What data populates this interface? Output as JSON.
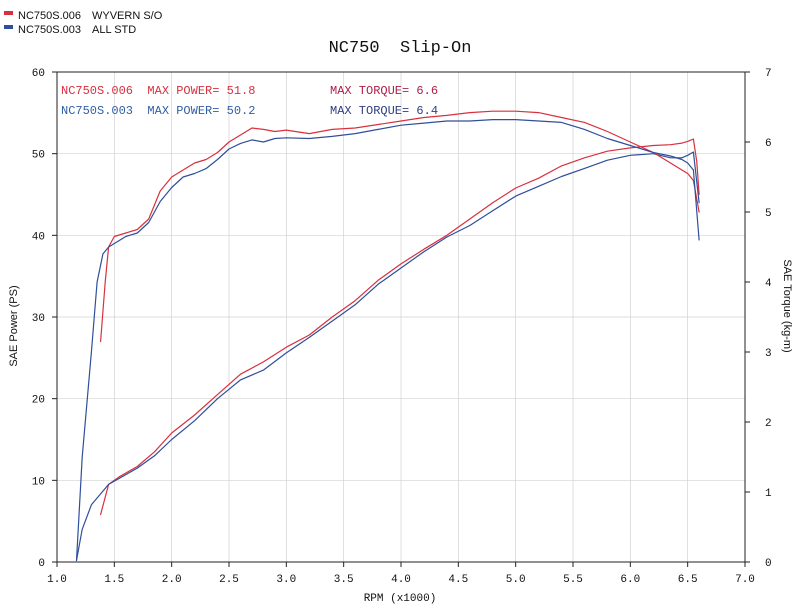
{
  "chart_data": {
    "type": "line",
    "title": "NC750  Slip-On",
    "xlabel": "RPM (x1000)",
    "ylabel": "SAE Power (PS)",
    "y2label": "SAE Torque (kg-m)",
    "xlim": [
      1.0,
      7.0
    ],
    "ylim": [
      0,
      60
    ],
    "y2lim": [
      0,
      7
    ],
    "xticks": [
      "1.0",
      "1.5",
      "2.0",
      "2.5",
      "3.0",
      "3.5",
      "4.0",
      "4.5",
      "5.0",
      "5.5",
      "6.0",
      "6.5",
      "7.0"
    ],
    "yticks": [
      "0",
      "10",
      "20",
      "30",
      "40",
      "50",
      "60"
    ],
    "y2ticks": [
      "0",
      "1",
      "2",
      "3",
      "4",
      "5",
      "6",
      "7"
    ],
    "grid": true,
    "legend": [
      {
        "code": "NC750S.006",
        "name": "WYVERN S/O",
        "color": "#d8303f"
      },
      {
        "code": "NC750S.003",
        "name": "ALL STD",
        "color": "#2f4f9a"
      }
    ],
    "annotations": [
      {
        "text": "NC750S.006  MAX POWER= 51.8",
        "color": "#d8303f"
      },
      {
        "text": "MAX TORQUE= 6.6",
        "color": "#b01e47"
      },
      {
        "text": "NC750S.003  MAX POWER= 50.2",
        "color": "#2f5fa8"
      },
      {
        "text": "MAX TORQUE= 6.4",
        "color": "#2f3f80"
      }
    ],
    "series": [
      {
        "name": "WYVERN S/O",
        "measure": "power",
        "axis": "left",
        "color": "#d8303f",
        "x": [
          1.38,
          1.45,
          1.55,
          1.7,
          1.85,
          2.0,
          2.2,
          2.4,
          2.6,
          2.8,
          3.0,
          3.2,
          3.4,
          3.6,
          3.8,
          4.0,
          4.2,
          4.4,
          4.6,
          4.8,
          5.0,
          5.2,
          5.4,
          5.6,
          5.8,
          6.0,
          6.2,
          6.35,
          6.45,
          6.5,
          6.55,
          6.58,
          6.6
        ],
        "y": [
          5.8,
          9.5,
          10.5,
          11.7,
          13.5,
          15.8,
          18.0,
          20.5,
          23.0,
          24.5,
          26.3,
          27.8,
          30.0,
          32.0,
          34.5,
          36.5,
          38.3,
          40.0,
          42.0,
          44.0,
          45.8,
          47.0,
          48.5,
          49.5,
          50.3,
          50.7,
          51.0,
          51.1,
          51.3,
          51.5,
          51.8,
          49.0,
          45.0
        ]
      },
      {
        "name": "ALL STD",
        "measure": "power",
        "axis": "left",
        "color": "#2f4f9a",
        "x": [
          1.17,
          1.22,
          1.3,
          1.45,
          1.55,
          1.7,
          1.85,
          2.0,
          2.2,
          2.4,
          2.6,
          2.8,
          3.0,
          3.2,
          3.4,
          3.6,
          3.8,
          4.0,
          4.2,
          4.4,
          4.6,
          4.8,
          5.0,
          5.2,
          5.4,
          5.6,
          5.8,
          6.0,
          6.2,
          6.35,
          6.45,
          6.5,
          6.55,
          6.6
        ],
        "y": [
          0.2,
          4.0,
          7.0,
          9.5,
          10.3,
          11.5,
          13.0,
          15.0,
          17.3,
          20.0,
          22.3,
          23.5,
          25.6,
          27.5,
          29.5,
          31.5,
          34.0,
          36.0,
          38.0,
          39.8,
          41.2,
          43.0,
          44.8,
          46.0,
          47.2,
          48.2,
          49.2,
          49.8,
          50.0,
          49.5,
          49.5,
          49.8,
          50.2,
          44.0
        ]
      },
      {
        "name": "WYVERN S/O",
        "measure": "torque",
        "axis": "right",
        "color": "#d8303f",
        "x": [
          1.38,
          1.42,
          1.45,
          1.5,
          1.6,
          1.7,
          1.8,
          1.9,
          2.0,
          2.1,
          2.2,
          2.3,
          2.4,
          2.5,
          2.6,
          2.7,
          2.8,
          2.9,
          3.0,
          3.2,
          3.4,
          3.6,
          3.8,
          4.0,
          4.2,
          4.4,
          4.6,
          4.8,
          5.0,
          5.2,
          5.4,
          5.6,
          5.8,
          6.0,
          6.2,
          6.35,
          6.45,
          6.5,
          6.55,
          6.6
        ],
        "y": [
          3.15,
          4.0,
          4.5,
          4.65,
          4.7,
          4.75,
          4.9,
          5.3,
          5.5,
          5.6,
          5.7,
          5.75,
          5.85,
          6.0,
          6.1,
          6.2,
          6.18,
          6.15,
          6.17,
          6.12,
          6.18,
          6.2,
          6.25,
          6.3,
          6.35,
          6.38,
          6.42,
          6.44,
          6.44,
          6.42,
          6.35,
          6.28,
          6.15,
          6.0,
          5.85,
          5.7,
          5.6,
          5.55,
          5.45,
          5.0
        ]
      },
      {
        "name": "ALL STD",
        "measure": "torque",
        "axis": "right",
        "color": "#2f4f9a",
        "x": [
          1.17,
          1.22,
          1.3,
          1.35,
          1.4,
          1.45,
          1.6,
          1.7,
          1.8,
          1.9,
          2.0,
          2.1,
          2.2,
          2.3,
          2.4,
          2.5,
          2.6,
          2.7,
          2.8,
          2.9,
          3.0,
          3.2,
          3.4,
          3.6,
          3.8,
          4.0,
          4.2,
          4.4,
          4.6,
          4.8,
          5.0,
          5.2,
          5.4,
          5.6,
          5.8,
          6.0,
          6.2,
          6.35,
          6.45,
          6.5,
          6.55,
          6.6
        ],
        "y": [
          0.02,
          1.5,
          3.0,
          4.0,
          4.4,
          4.5,
          4.65,
          4.7,
          4.85,
          5.15,
          5.35,
          5.5,
          5.55,
          5.62,
          5.75,
          5.9,
          5.98,
          6.03,
          6.0,
          6.05,
          6.06,
          6.05,
          6.08,
          6.12,
          6.18,
          6.24,
          6.27,
          6.3,
          6.3,
          6.32,
          6.32,
          6.3,
          6.28,
          6.18,
          6.05,
          5.95,
          5.85,
          5.8,
          5.75,
          5.7,
          5.6,
          4.6
        ]
      }
    ]
  }
}
